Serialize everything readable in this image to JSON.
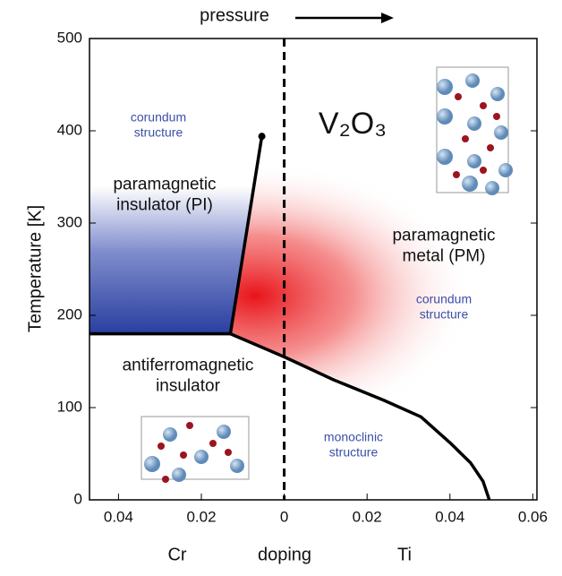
{
  "chart_data": {
    "type": "phase_diagram",
    "top_label": "pressure",
    "y_label": "Temperature  [K]",
    "x_labels": [
      "Cr",
      "doping",
      "Ti"
    ],
    "compound": "V₂O₃",
    "annotations": [
      "corundum structure",
      "paramagnetic insulator (PI)",
      "paramagnetic metal (PM)",
      "corundum structure",
      "antiferromagnetic insulator",
      "monoclinic structure"
    ],
    "xlim": [
      -0.047,
      0.061
    ],
    "ylim": [
      0,
      500
    ],
    "xticks": [
      {
        "value": -0.04,
        "label": "0.04"
      },
      {
        "value": -0.02,
        "label": "0.02"
      },
      0,
      0.02,
      0.04,
      0.06
    ],
    "yticks": [
      0,
      100,
      200,
      300,
      400,
      500
    ],
    "boundaries": [
      {
        "x": [
          -0.047,
          -0.013
        ],
        "y": [
          180,
          180
        ]
      },
      {
        "x": [
          -0.013,
          -0.0054
        ],
        "y": [
          180,
          394
        ]
      },
      {
        "x": [
          -0.013,
          0,
          0.012,
          0.024,
          0.033,
          0.04,
          0.045,
          0.048,
          0.0495
        ],
        "y": [
          180,
          155,
          130,
          108,
          90,
          62,
          40,
          20,
          0
        ]
      }
    ],
    "color": "#000000"
  }
}
